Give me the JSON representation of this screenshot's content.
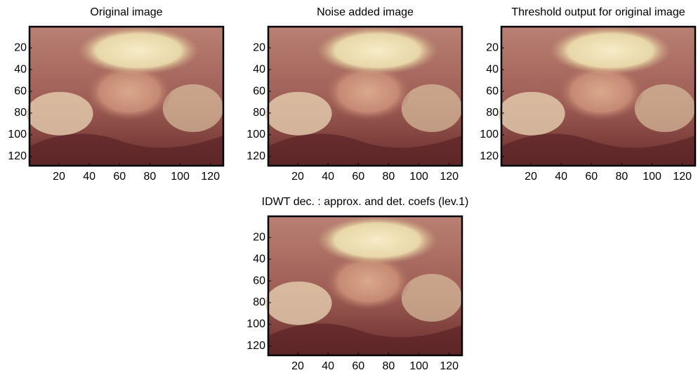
{
  "chart_data": [
    {
      "type": "image",
      "title": "Original image",
      "xlim": [
        0.5,
        128.5
      ],
      "ylim": [
        0.5,
        128.5
      ],
      "y_reversed": true,
      "xticks": [
        20,
        40,
        60,
        80,
        100,
        120
      ],
      "yticks": [
        20,
        40,
        60,
        80,
        100,
        120
      ]
    },
    {
      "type": "image",
      "title": "Noise added image",
      "xlim": [
        0.5,
        128.5
      ],
      "ylim": [
        0.5,
        128.5
      ],
      "y_reversed": true,
      "xticks": [
        20,
        40,
        60,
        80,
        100,
        120
      ],
      "yticks": [
        20,
        40,
        60,
        80,
        100,
        120
      ]
    },
    {
      "type": "image",
      "title": "Threshold output for original image",
      "xlim": [
        0.5,
        128.5
      ],
      "ylim": [
        0.5,
        128.5
      ],
      "y_reversed": true,
      "xticks": [
        20,
        40,
        60,
        80,
        100,
        120
      ],
      "yticks": [
        20,
        40,
        60,
        80,
        100,
        120
      ]
    },
    {
      "type": "image",
      "title": "IDWT dec. : approx. and det. coefs (lev.1)",
      "xlim": [
        0.5,
        128.5
      ],
      "ylim": [
        0.5,
        128.5
      ],
      "y_reversed": true,
      "xticks": [
        20,
        40,
        60,
        80,
        100,
        120
      ],
      "yticks": [
        20,
        40,
        60,
        80,
        100,
        120
      ]
    }
  ]
}
